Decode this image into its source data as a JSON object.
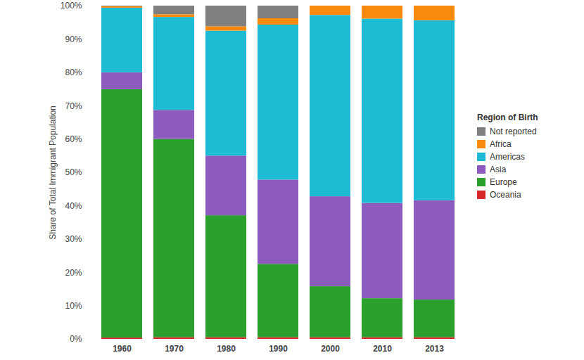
{
  "chart_data": {
    "type": "bar",
    "stacked": true,
    "ylabel": "Share of Total Immigrant Population",
    "legend_title": "Region of Birth",
    "legend": "right",
    "grid": false,
    "categories": [
      "1960",
      "1970",
      "1980",
      "1990",
      "2000",
      "2010",
      "2013"
    ],
    "series": [
      {
        "name": "Not reported",
        "color": "#7f7f7f",
        "values": [
          0.2,
          2.6,
          6.2,
          3.8,
          0,
          0,
          0
        ]
      },
      {
        "name": "Africa",
        "color": "#f98a0e",
        "values": [
          0.4,
          0.8,
          1.3,
          1.9,
          2.8,
          3.9,
          4.4
        ]
      },
      {
        "name": "Americas",
        "color": "#1dbcd4",
        "values": [
          19.4,
          27.9,
          37.5,
          46.5,
          54.4,
          55.3,
          54.0
        ]
      },
      {
        "name": "Asia",
        "color": "#8c5bbd",
        "values": [
          5.1,
          8.7,
          17.9,
          25.3,
          27.0,
          28.6,
          29.8
        ]
      },
      {
        "name": "Europe",
        "color": "#2ca02c",
        "values": [
          74.5,
          59.5,
          36.6,
          22.0,
          15.3,
          11.7,
          11.3
        ]
      },
      {
        "name": "Oceania",
        "color": "#d62728",
        "values": [
          0.4,
          0.5,
          0.5,
          0.5,
          0.5,
          0.5,
          0.5
        ]
      }
    ],
    "ylim": [
      0,
      100
    ],
    "yticks": [
      {
        "value": 0,
        "label": "0%"
      },
      {
        "value": 10,
        "label": "10%"
      },
      {
        "value": 20,
        "label": "20%"
      },
      {
        "value": 30,
        "label": "30%"
      },
      {
        "value": 40,
        "label": "40%"
      },
      {
        "value": 50,
        "label": "50%"
      },
      {
        "value": 60,
        "label": "60%"
      },
      {
        "value": 70,
        "label": "70%"
      },
      {
        "value": 80,
        "label": "80%"
      },
      {
        "value": 90,
        "label": "90%"
      },
      {
        "value": 100,
        "label": "100%"
      }
    ]
  }
}
